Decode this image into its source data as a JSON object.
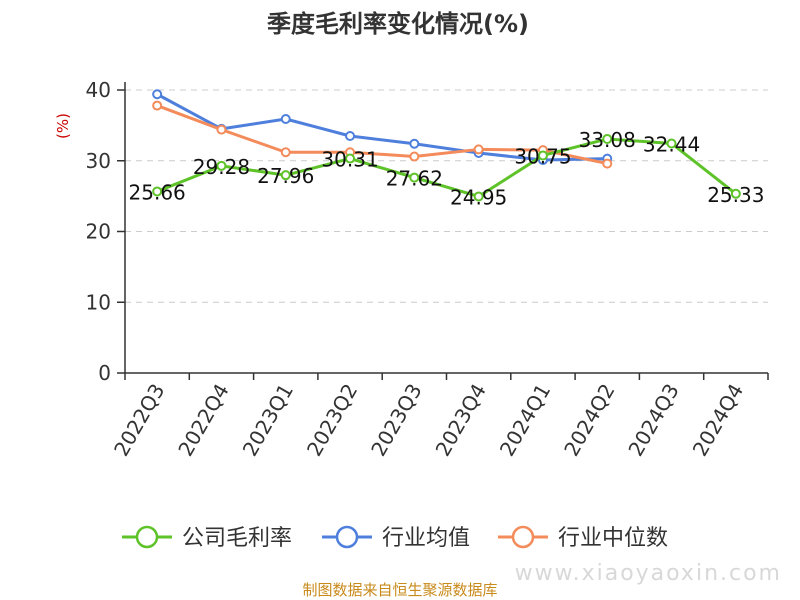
{
  "chart_data": {
    "type": "line",
    "title": "季度毛利率变化情况(%)",
    "ylabel": "(%)",
    "xlabel": "",
    "ylim": [
      0,
      40
    ],
    "yticks": [
      0,
      10,
      20,
      30,
      40
    ],
    "grid": true,
    "legend_position": "bottom",
    "categories": [
      "2022Q3",
      "2022Q4",
      "2023Q1",
      "2023Q2",
      "2023Q3",
      "2023Q4",
      "2024Q1",
      "2024Q2",
      "2024Q3",
      "2024Q4"
    ],
    "series": [
      {
        "name": "公司毛利率",
        "color": "#5ec229",
        "values": [
          25.66,
          29.28,
          27.96,
          30.31,
          27.62,
          24.95,
          30.75,
          33.08,
          32.44,
          25.33
        ],
        "labels": [
          "25.66",
          "29.28",
          "27.96",
          "30.31",
          "27.62",
          "24.95",
          "30.75",
          "33.08",
          "32.44",
          "25.33"
        ]
      },
      {
        "name": "行业均值",
        "color": "#4e7fdc",
        "values": [
          39.4,
          34.5,
          35.9,
          33.5,
          32.4,
          31.1,
          30.1,
          30.3,
          null,
          null
        ]
      },
      {
        "name": "行业中位数",
        "color": "#f38b5a",
        "values": [
          37.8,
          34.4,
          31.2,
          31.2,
          30.6,
          31.6,
          31.5,
          29.6,
          null,
          null
        ]
      }
    ]
  },
  "source": "制图数据来自恒生聚源数据库",
  "watermark": "www.xiaoyaoxin.com"
}
